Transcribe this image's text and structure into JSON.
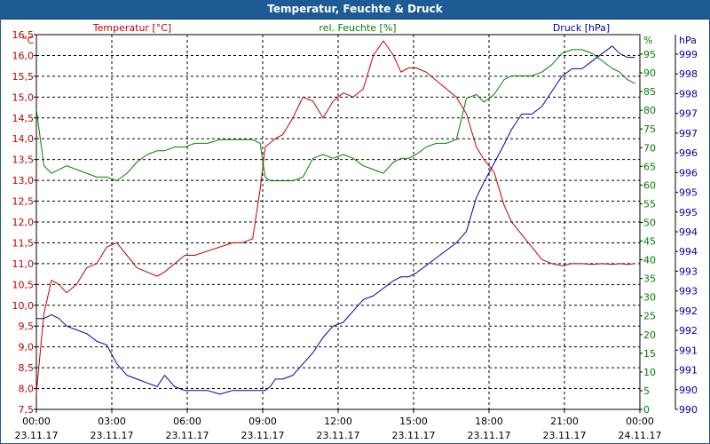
{
  "window": {
    "title": "Temperatur, Feuchte & Druck"
  },
  "colors": {
    "temperature": "#c00000",
    "humidity": "#008000",
    "pressure": "#0000a8",
    "frame": "#1e5b94"
  },
  "chart_data": {
    "type": "line",
    "title": "Temperatur, Feuchte & Druck",
    "x_time_labels": [
      "00:00",
      "03:00",
      "06:00",
      "09:00",
      "12:00",
      "15:00",
      "18:00",
      "21:00",
      "00:00"
    ],
    "x_date_labels": [
      "23.11.17",
      "23.11.17",
      "23.11.17",
      "23.11.17",
      "23.11.17",
      "23.11.17",
      "23.11.17",
      "23.11.17",
      "24.11.17"
    ],
    "xlim_hours": [
      0,
      24
    ],
    "grid": true,
    "axes": {
      "left": {
        "legend": "Temperatur [°C]",
        "unit": "°C",
        "range": [
          7.5,
          16.5
        ],
        "ticks": [
          "16,5",
          "16,0",
          "15,5",
          "15,0",
          "14,5",
          "14,0",
          "13,5",
          "13,0",
          "12,5",
          "12,0",
          "11,5",
          "11,0",
          "10,5",
          "10,0",
          "9,5",
          "9,0",
          "8,5",
          "8,0",
          "7,5"
        ]
      },
      "middle": {
        "legend": "rel. Feuchte [%]",
        "unit": "%",
        "range": [
          0,
          100
        ],
        "ticks": [
          "95",
          "90",
          "85",
          "80",
          "75",
          "70",
          "65",
          "60",
          "55",
          "50",
          "45",
          "40",
          "35",
          "30",
          "25",
          "20",
          "15",
          "10",
          "5",
          "0"
        ]
      },
      "right": {
        "legend": "Druck [hPa]",
        "unit": "hPa",
        "range": [
          989.6,
          999.5
        ],
        "ticks": [
          "999",
          "998",
          "998",
          "997",
          "997",
          "996",
          "996",
          "995",
          "995",
          "994",
          "994",
          "993",
          "993",
          "992",
          "992",
          "991",
          "991",
          "990",
          "990"
        ]
      }
    },
    "series": [
      {
        "name": "Temperatur [°C]",
        "axis": "left",
        "color": "#c00000",
        "x": [
          0,
          0.3,
          0.6,
          0.9,
          1.2,
          1.6,
          2.0,
          2.4,
          2.8,
          3.2,
          3.6,
          4.0,
          4.4,
          4.8,
          5.1,
          5.5,
          5.9,
          6.3,
          6.8,
          7.3,
          7.8,
          8.2,
          8.6,
          8.9,
          9.1,
          9.3,
          9.5,
          9.8,
          10.2,
          10.6,
          11.0,
          11.4,
          11.8,
          12.2,
          12.6,
          13.0,
          13.4,
          13.8,
          14.2,
          14.5,
          14.8,
          15.1,
          15.5,
          15.9,
          16.3,
          16.7,
          17.1,
          17.5,
          17.8,
          18.2,
          18.6,
          18.9,
          19.3,
          19.7,
          20.1,
          20.5,
          20.9,
          21.3,
          21.7,
          22.1,
          22.5,
          22.9,
          23.2,
          23.5,
          23.8
        ],
        "values": [
          7.9,
          9.8,
          10.6,
          10.5,
          10.3,
          10.5,
          10.9,
          11.0,
          11.4,
          11.5,
          11.2,
          10.9,
          10.8,
          10.7,
          10.8,
          11.0,
          11.2,
          11.2,
          11.3,
          11.4,
          11.5,
          11.5,
          11.6,
          12.8,
          13.8,
          13.9,
          14.0,
          14.1,
          14.5,
          15.0,
          14.9,
          14.5,
          14.9,
          15.1,
          15.0,
          15.2,
          16.0,
          16.35,
          16.0,
          15.6,
          15.7,
          15.7,
          15.6,
          15.4,
          15.2,
          15.0,
          14.6,
          13.8,
          13.5,
          13.2,
          12.4,
          12.0,
          11.7,
          11.4,
          11.1,
          11.0,
          10.95,
          11.0,
          11.0,
          10.98,
          11.0,
          10.98,
          11.0,
          10.98,
          11.0
        ]
      },
      {
        "name": "rel. Feuchte [%]",
        "axis": "middle",
        "color": "#008000",
        "x": [
          0,
          0.3,
          0.6,
          0.9,
          1.2,
          1.6,
          2.0,
          2.4,
          2.8,
          3.2,
          3.6,
          4.0,
          4.4,
          4.8,
          5.1,
          5.5,
          5.9,
          6.3,
          6.8,
          7.3,
          7.8,
          8.2,
          8.6,
          8.9,
          9.1,
          9.3,
          9.5,
          9.8,
          10.2,
          10.6,
          11.0,
          11.4,
          11.8,
          12.2,
          12.6,
          13.0,
          13.4,
          13.8,
          14.2,
          14.5,
          14.8,
          15.1,
          15.5,
          15.9,
          16.3,
          16.7,
          17.1,
          17.5,
          17.8,
          18.2,
          18.6,
          18.9,
          19.3,
          19.7,
          20.1,
          20.5,
          20.9,
          21.3,
          21.7,
          22.1,
          22.5,
          22.9,
          23.2,
          23.5,
          23.8
        ],
        "values": [
          80,
          65,
          63,
          64,
          65,
          64,
          63,
          62,
          62,
          61,
          63,
          66,
          68,
          69,
          69,
          70,
          70,
          71,
          71,
          72,
          72,
          72,
          72,
          71,
          62,
          61,
          61,
          61,
          61,
          62,
          67,
          68,
          67,
          68,
          67,
          65,
          64,
          63,
          66,
          67,
          67,
          68,
          70,
          71,
          71,
          72,
          83,
          84,
          82,
          84,
          88,
          89,
          89,
          89,
          90,
          92,
          95,
          96,
          96,
          95,
          93,
          91,
          90,
          88,
          87
        ]
      },
      {
        "name": "Druck [hPa]",
        "axis": "right",
        "color": "#0000a8",
        "x": [
          0,
          0.3,
          0.6,
          0.9,
          1.2,
          1.6,
          2.0,
          2.4,
          2.8,
          3.2,
          3.6,
          4.0,
          4.4,
          4.8,
          5.1,
          5.5,
          5.9,
          6.3,
          6.8,
          7.3,
          7.8,
          8.2,
          8.6,
          8.9,
          9.1,
          9.3,
          9.5,
          9.8,
          10.2,
          10.6,
          11.0,
          11.4,
          11.8,
          12.2,
          12.6,
          13.0,
          13.4,
          13.8,
          14.2,
          14.5,
          14.8,
          15.1,
          15.5,
          15.9,
          16.3,
          16.7,
          17.1,
          17.5,
          17.8,
          18.2,
          18.6,
          18.9,
          19.3,
          19.7,
          20.1,
          20.5,
          20.9,
          21.3,
          21.7,
          22.1,
          22.5,
          22.9,
          23.2,
          23.5,
          23.8
        ],
        "values": [
          992.0,
          992.0,
          992.1,
          992.0,
          991.8,
          991.7,
          991.6,
          991.4,
          991.3,
          990.8,
          990.5,
          990.4,
          990.3,
          990.2,
          990.5,
          990.2,
          990.1,
          990.1,
          990.1,
          990.0,
          990.1,
          990.1,
          990.1,
          990.1,
          990.1,
          990.2,
          990.4,
          990.4,
          990.5,
          990.8,
          991.1,
          991.5,
          991.8,
          991.9,
          992.2,
          992.5,
          992.6,
          992.8,
          993.0,
          993.1,
          993.1,
          993.2,
          993.4,
          993.6,
          993.8,
          994.0,
          994.3,
          995.2,
          995.6,
          996.1,
          996.6,
          997.0,
          997.4,
          997.4,
          997.6,
          998.0,
          998.4,
          998.6,
          998.6,
          998.8,
          999.0,
          999.2,
          999.0,
          998.9,
          998.9
        ]
      }
    ]
  }
}
